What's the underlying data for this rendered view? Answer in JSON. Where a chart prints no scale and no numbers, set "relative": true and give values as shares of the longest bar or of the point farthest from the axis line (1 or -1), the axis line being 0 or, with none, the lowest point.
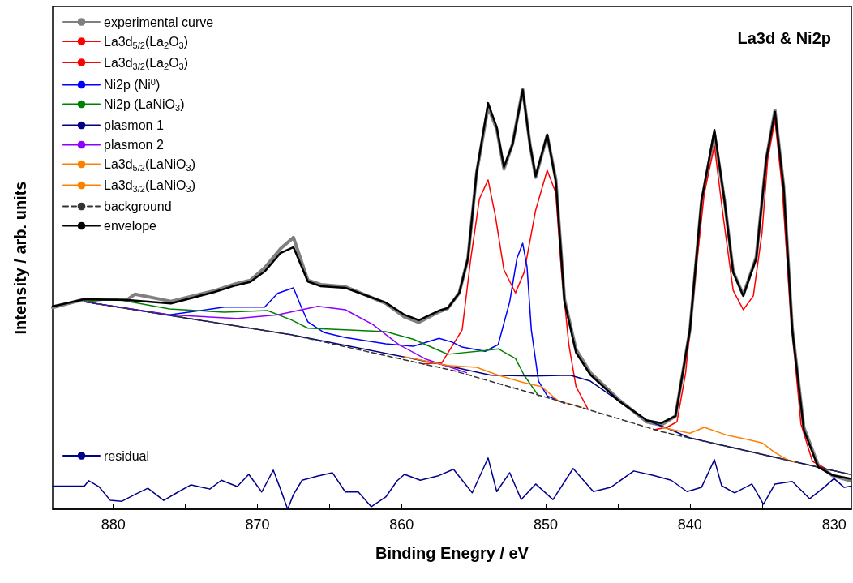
{
  "chart_data": {
    "type": "line",
    "title": "La3d & Ni2p",
    "xlabel": "Binding Enegry / eV",
    "ylabel": "Intensity / arb. units",
    "relative": true,
    "marker": "none",
    "legend": "top left",
    "xlim": [
      884.2,
      828.8
    ],
    "xticks": [
      880,
      {
        "value": 875,
        "label": null
      },
      870,
      {
        "value": 865,
        "label": null
      },
      860,
      {
        "value": 855,
        "label": null
      },
      850,
      {
        "value": 845,
        "label": null
      },
      840,
      {
        "value": 835,
        "label": null
      },
      830
    ],
    "series": [
      {
        "name": "experimental curve",
        "color": "#808080",
        "x": [
          884.2,
          882,
          879,
          878.5,
          876,
          873,
          871.5,
          870.5,
          869.5,
          868.4,
          867.5,
          866.5,
          865.6,
          863.9,
          861.1,
          859.8,
          858.8,
          857.4,
          856.8,
          856.0,
          855.4,
          854.8,
          854.0,
          853.4,
          852.9,
          852.3,
          851.6,
          851.1,
          850.7,
          849.9,
          849.3,
          848.7,
          847.9,
          846.9,
          844.9,
          843.0,
          842.0,
          841.0,
          840.0,
          839.2,
          838.3,
          837.6,
          837.0,
          836.3,
          835.4,
          834.7,
          834.1,
          833.5,
          832.9,
          832.1,
          831.1,
          830.1,
          828.9
        ],
        "values": [
          0.48,
          0.5,
          0.5,
          0.512,
          0.495,
          0.52,
          0.537,
          0.545,
          0.575,
          0.62,
          0.647,
          0.545,
          0.535,
          0.53,
          0.49,
          0.458,
          0.445,
          0.47,
          0.478,
          0.515,
          0.597,
          0.8,
          0.958,
          0.905,
          0.81,
          0.87,
          1.0,
          0.87,
          0.79,
          0.89,
          0.785,
          0.5,
          0.38,
          0.325,
          0.26,
          0.208,
          0.2,
          0.222,
          0.427,
          0.73,
          0.895,
          0.735,
          0.566,
          0.51,
          0.6,
          0.834,
          0.95,
          0.77,
          0.43,
          0.195,
          0.105,
          0.08,
          0.068
        ]
      },
      {
        "name": "La3d$_{5/2}$(La$_{2}$O$_{3}$)",
        "color": "#ff0000",
        "x": [
          842.5,
          841.6,
          840.9,
          840.3,
          839.6,
          839.0,
          838.3,
          837.7,
          837.0,
          836.3,
          835.6,
          835.0,
          834.6,
          834.1,
          833.6,
          833.0,
          832.3,
          831.5,
          830.5
        ],
        "values": [
          0.189,
          0.195,
          0.208,
          0.324,
          0.564,
          0.753,
          0.865,
          0.699,
          0.521,
          0.475,
          0.508,
          0.658,
          0.834,
          0.927,
          0.766,
          0.461,
          0.203,
          0.114,
          0.095
        ]
      },
      {
        "name": "La3d$_{3/2}$(La$_{2}$O$_{3}$)",
        "color": "#ff0000",
        "x": [
          858.5,
          857.2,
          855.8,
          855.2,
          854.6,
          854.0,
          853.5,
          852.9,
          852.1,
          851.5,
          850.7,
          849.9,
          849.3,
          848.9,
          848.4,
          847.9,
          847.1
        ],
        "values": [
          0.346,
          0.349,
          0.427,
          0.597,
          0.739,
          0.784,
          0.699,
          0.57,
          0.515,
          0.564,
          0.712,
          0.807,
          0.753,
          0.564,
          0.392,
          0.292,
          0.24
        ]
      },
      {
        "name": "Ni2p (Ni$^{0}$)",
        "color": "#0000ff",
        "x": [
          882,
          876.1,
          872.3,
          869.5,
          868.6,
          867.5,
          867.0,
          866.5,
          865.4,
          863.9,
          861.1,
          859.2,
          857.4,
          856.5,
          855.8,
          854.2,
          853.3,
          852.5,
          852.0,
          851.6,
          851.3,
          851.0,
          850.5,
          849.9,
          848.7
        ],
        "values": [
          0.494,
          0.463,
          0.481,
          0.481,
          0.514,
          0.527,
          0.485,
          0.446,
          0.421,
          0.409,
          0.394,
          0.388,
          0.407,
          0.398,
          0.386,
          0.376,
          0.392,
          0.494,
          0.597,
          0.633,
          0.577,
          0.427,
          0.305,
          0.27,
          0.252
        ]
      },
      {
        "name": "Ni2p (LaNiO$_{3}$)",
        "color": "#008000",
        "x": [
          882,
          879.8,
          876.1,
          872.3,
          869.3,
          867.6,
          866.5,
          863.9,
          861.1,
          859.2,
          857.4,
          856.8,
          854.2,
          853.3,
          852.1,
          851.5,
          850.5
        ],
        "values": [
          0.494,
          0.5,
          0.477,
          0.469,
          0.473,
          0.45,
          0.431,
          0.427,
          0.423,
          0.405,
          0.378,
          0.369,
          0.378,
          0.382,
          0.359,
          0.319,
          0.27
        ]
      },
      {
        "name": "plasmon 1",
        "color": "#000080",
        "x": [
          882,
          867.6,
          857.4,
          853.8,
          850.9,
          848.3,
          846.9,
          844.9,
          843.0,
          841.6,
          840.0,
          828.9
        ],
        "values": [
          0.494,
          0.415,
          0.346,
          0.319,
          0.317,
          0.319,
          0.305,
          0.257,
          0.212,
          0.193,
          0.17,
          0.083
        ]
      },
      {
        "name": "plasmon 2",
        "color": "#8b00ff",
        "x": [
          882,
          876.1,
          871.4,
          868.6,
          865.8,
          863.9,
          862.0,
          860.2,
          858.3,
          856.6,
          855.5
        ],
        "values": [
          0.494,
          0.463,
          0.454,
          0.463,
          0.483,
          0.475,
          0.44,
          0.392,
          0.357,
          0.338,
          0.325
        ]
      },
      {
        "name": "La3d$_{5/2}$(LaNiO$_{3}$)",
        "color": "#ff8000",
        "x": [
          842.0,
          840.0,
          839.0,
          837.4,
          836.0,
          835.0,
          834.1,
          833.1,
          832.7
        ],
        "values": [
          0.195,
          0.181,
          0.195,
          0.176,
          0.166,
          0.158,
          0.135,
          0.115,
          0.112
        ]
      },
      {
        "name": "La3d$_{3/2}$(LaNiO$_{3}$)",
        "color": "#ff8000",
        "x": [
          859.8,
          856.8,
          854.8,
          853.3,
          851.5,
          850.3,
          849.1,
          847.5
        ],
        "values": [
          0.363,
          0.342,
          0.338,
          0.319,
          0.301,
          0.292,
          0.257,
          0.243
        ]
      },
      {
        "name": "background",
        "color": "#333333",
        "line_style": "dashed",
        "x": [
          882,
          867.6,
          856.4,
          848,
          842,
          828.9
        ],
        "values": [
          0.494,
          0.415,
          0.33,
          0.247,
          0.185,
          0.083
        ]
      },
      {
        "name": "envelope",
        "color": "#000000",
        "x": [
          884.2,
          882,
          879,
          876,
          873,
          871.5,
          870.5,
          869.5,
          868.4,
          867.5,
          866.5,
          865.6,
          863.9,
          861.1,
          859.8,
          858.8,
          857.4,
          856.8,
          856.0,
          855.4,
          854.8,
          854.0,
          853.4,
          852.9,
          852.3,
          851.6,
          851.1,
          850.7,
          849.9,
          849.3,
          848.7,
          847.9,
          846.9,
          844.9,
          843.0,
          842.0,
          841.0,
          840.0,
          839.2,
          838.3,
          837.6,
          837.0,
          836.3,
          835.4,
          834.7,
          834.1,
          833.5,
          832.9,
          832.1,
          831.1,
          830.1,
          828.9
        ],
        "values": [
          0.483,
          0.5,
          0.498,
          0.49,
          0.517,
          0.533,
          0.541,
          0.566,
          0.61,
          0.624,
          0.542,
          0.531,
          0.527,
          0.492,
          0.463,
          0.45,
          0.473,
          0.479,
          0.515,
          0.597,
          0.801,
          0.967,
          0.909,
          0.815,
          0.869,
          0.998,
          0.869,
          0.793,
          0.892,
          0.78,
          0.494,
          0.373,
          0.32,
          0.257,
          0.212,
          0.205,
          0.222,
          0.427,
          0.734,
          0.903,
          0.734,
          0.564,
          0.508,
          0.597,
          0.834,
          0.946,
          0.766,
          0.427,
          0.189,
          0.1,
          0.081,
          0.073
        ]
      },
      {
        "name": "residual",
        "color": "#00008b",
        "x": [
          884.2,
          882,
          881.7,
          881.0,
          880.2,
          879.4,
          878.5,
          877.6,
          876.5,
          875.5,
          874.6,
          873.3,
          872.5,
          871.4,
          870.6,
          869.7,
          868.9,
          868.4,
          867.9,
          867.5,
          866.9,
          865.8,
          864.8,
          863.9,
          863.0,
          862.1,
          861.1,
          860.3,
          859.8,
          858.7,
          857.5,
          856.4,
          855.1,
          854.0,
          853.4,
          852.5,
          851.7,
          850.7,
          849.5,
          848.1,
          846.7,
          845.5,
          843.9,
          842.6,
          841.3,
          840.2,
          839.2,
          838.3,
          837.8,
          836.9,
          835.7,
          834.9,
          834.1,
          832.9,
          831.7,
          830.7,
          830.0,
          829.3,
          828.8
        ],
        "values": [
          0.055,
          0.055,
          0.068,
          0.054,
          0.021,
          0.019,
          0.035,
          0.05,
          0.021,
          0.041,
          0.058,
          0.048,
          0.069,
          0.054,
          0.083,
          0.041,
          0.093,
          0.048,
          0.0,
          0.035,
          0.069,
          0.079,
          0.087,
          0.041,
          0.041,
          0.006,
          0.029,
          0.068,
          0.083,
          0.069,
          0.079,
          0.095,
          0.039,
          0.122,
          0.042,
          0.087,
          0.023,
          0.06,
          0.023,
          0.097,
          0.042,
          0.052,
          0.091,
          0.081,
          0.069,
          0.042,
          0.052,
          0.118,
          0.056,
          0.039,
          0.06,
          0.012,
          0.06,
          0.066,
          0.025,
          0.052,
          0.073,
          0.052,
          0.055
        ]
      }
    ]
  }
}
